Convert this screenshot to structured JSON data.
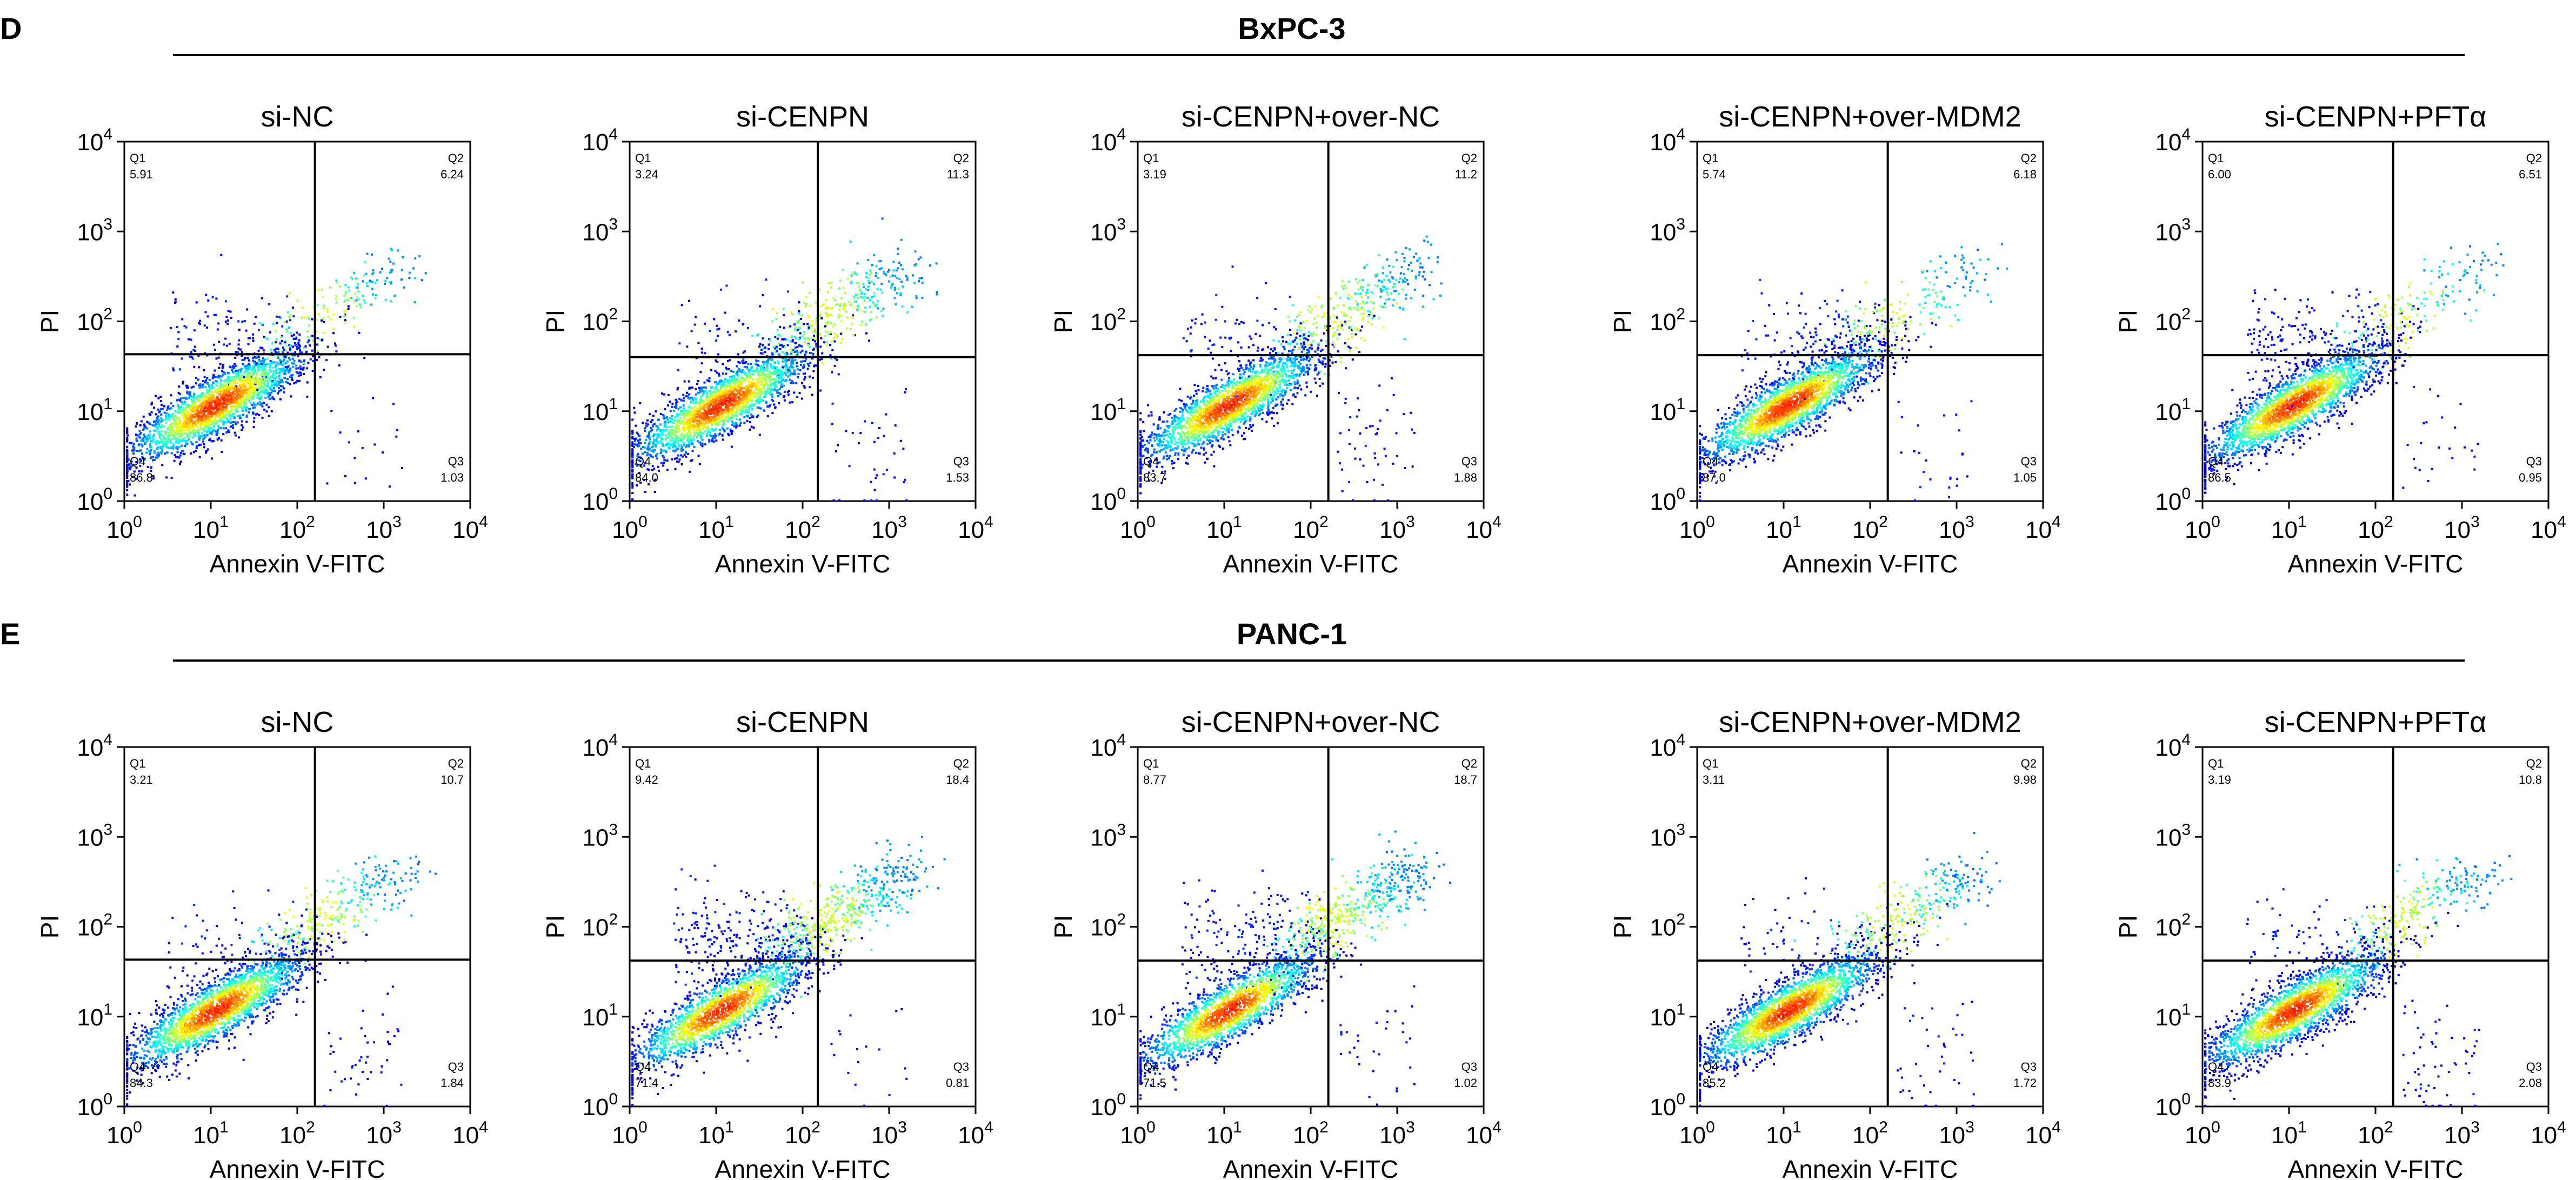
{
  "figure": {
    "x_axis_label": "Annexin V-FITC",
    "y_axis_label": "PI",
    "quadrant_labels": [
      "Q1",
      "Q2",
      "Q3",
      "Q4"
    ],
    "tick_base": "10",
    "tick_exponents": [
      "0",
      "1",
      "2",
      "3",
      "4"
    ]
  },
  "chart_data": [
    {
      "type": "scatter",
      "panel": "D",
      "title": "BxPC-3",
      "xlabel": "Annexin V-FITC",
      "ylabel": "PI",
      "xscale": "log",
      "yscale": "log",
      "xlim": [
        1,
        10000
      ],
      "ylim": [
        1,
        10000
      ],
      "plots": [
        {
          "subtitle": "si-NC",
          "gate_x": 160,
          "gate_y": 43,
          "q1": "5.91",
          "q2": "6.24",
          "q3": "1.03",
          "q4": "86.8"
        },
        {
          "subtitle": "si-CENPN",
          "gate_x": 150,
          "gate_y": 40,
          "q1": "3.24",
          "q2": "11.3",
          "q3": "1.53",
          "q4": "84.0"
        },
        {
          "subtitle": "si-CENPN+over-NC",
          "gate_x": 160,
          "gate_y": 42,
          "q1": "3.19",
          "q2": "11.2",
          "q3": "1.88",
          "q4": "83.7"
        },
        {
          "subtitle": "si-CENPN+over-MDM2",
          "gate_x": 160,
          "gate_y": 42,
          "q1": "5.74",
          "q2": "6.18",
          "q3": "1.05",
          "q4": "87.0"
        },
        {
          "subtitle": "si-CENPN+PFTα",
          "gate_x": 160,
          "gate_y": 42,
          "q1": "6.00",
          "q2": "6.51",
          "q3": "0.95",
          "q4": "86.5"
        }
      ]
    },
    {
      "type": "scatter",
      "panel": "E",
      "title": "PANC-1",
      "xlabel": "Annexin V-FITC",
      "ylabel": "PI",
      "xscale": "log",
      "yscale": "log",
      "xlim": [
        1,
        10000
      ],
      "ylim": [
        1,
        10000
      ],
      "plots": [
        {
          "subtitle": "si-NC",
          "gate_x": 160,
          "gate_y": 43,
          "q1": "3.21",
          "q2": "10.7",
          "q3": "1.84",
          "q4": "84.3"
        },
        {
          "subtitle": "si-CENPN",
          "gate_x": 150,
          "gate_y": 42,
          "q1": "9.42",
          "q2": "18.4",
          "q3": "0.81",
          "q4": "71.4"
        },
        {
          "subtitle": "si-CENPN+over-NC",
          "gate_x": 160,
          "gate_y": 42,
          "q1": "8.77",
          "q2": "18.7",
          "q3": "1.02",
          "q4": "71.5"
        },
        {
          "subtitle": "si-CENPN+over-MDM2",
          "gate_x": 160,
          "gate_y": 42,
          "q1": "3.11",
          "q2": "9.98",
          "q3": "1.72",
          "q4": "85.2"
        },
        {
          "subtitle": "si-CENPN+PFTα",
          "gate_x": 160,
          "gate_y": 42,
          "q1": "3.19",
          "q2": "10.8",
          "q3": "2.08",
          "q4": "83.9"
        }
      ]
    }
  ]
}
